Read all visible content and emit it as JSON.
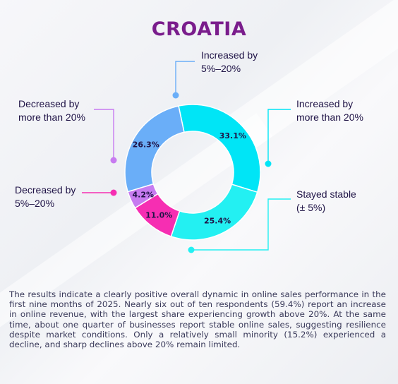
{
  "title": "CROATIA",
  "chart_data": {
    "type": "pie",
    "donut": true,
    "categories": [
      "Increased by more than 20%",
      "Stayed stable (± 5%)",
      "Decreased by 5%–20%",
      "Decreased by more than 20%",
      "Increased by 5%–20%"
    ],
    "values": [
      33.1,
      25.4,
      11.0,
      4.2,
      26.3
    ],
    "value_labels": [
      "33.1%",
      "25.4%",
      "11.0%",
      "4.2%",
      "26.3%"
    ],
    "colors": [
      "#00e5f6",
      "#23f0f2",
      "#f62eb2",
      "#c77bf0",
      "#6aaef8"
    ]
  },
  "labels": {
    "inc_5_20": "Increased by\n5%–20%",
    "inc_gt20": "Increased by\nmore than 20%",
    "dec_gt20": "Decreased by\nmore than 20%",
    "dec_5_20": "Decreased by\n5%–20%",
    "stable": "Stayed stable\n(± 5%)"
  },
  "description": "The results indicate a clearly positive overall dynamic in online sales performance in the first nine months of 2025. Nearly six out of ten respondents (59.4%) report an increase in online revenue, with the largest share experiencing growth above 20%. At the same time, about one quarter of businesses report stable online sales, suggesting resilience despite market conditions. Only a relatively small minority (15.2%) experienced a decline, and sharp declines above 20% remain limited."
}
